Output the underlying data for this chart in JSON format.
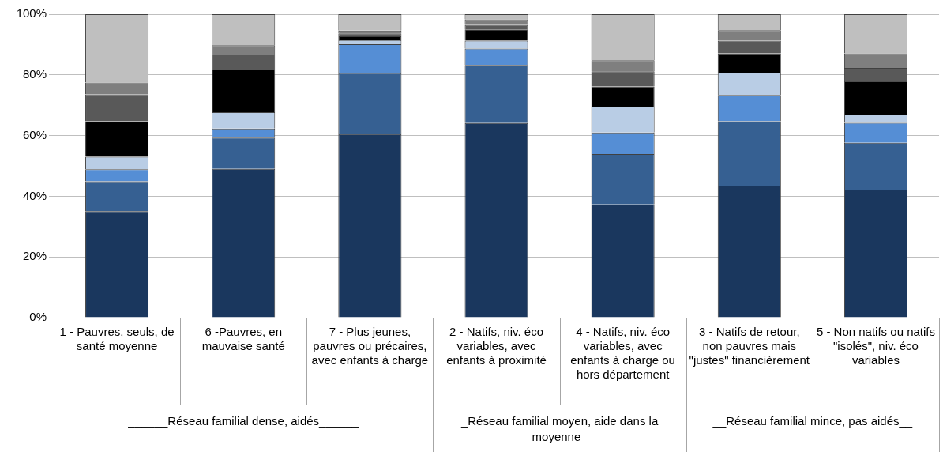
{
  "chart_data": {
    "type": "bar",
    "stacked": true,
    "categories": [
      "1 - Pauvres, seuls, de santé moyenne",
      "6 -Pauvres, en mauvaise santé",
      "7 - Plus jeunes, pauvres ou précaires, avec enfants à charge",
      "2 - Natifs, niv. éco variables, avec enfants à proximité",
      "4 - Natifs, niv. éco variables, avec enfants à charge ou hors département",
      "3 - Natifs de retour, non pauvres mais \"justes\" financièrement",
      "5 - Non natifs ou natifs \"isolés\", niv. éco variables"
    ],
    "series": [
      {
        "color": "#1a375e",
        "values": [
          35.1,
          49.0,
          60.5,
          64.1,
          37.3,
          43.5,
          42.2
        ]
      },
      {
        "color": "#366092",
        "values": [
          9.8,
          10.3,
          20.1,
          19.2,
          16.6,
          21.2,
          15.4
        ]
      },
      {
        "color": "#558ed5",
        "values": [
          4.0,
          3.0,
          9.5,
          5.4,
          7.1,
          8.7,
          6.6
        ]
      },
      {
        "color": "#b9cde5",
        "values": [
          4.1,
          5.4,
          1.4,
          2.6,
          8.5,
          7.3,
          2.7
        ]
      },
      {
        "color": "#000000",
        "values": [
          11.7,
          14.1,
          1.2,
          3.7,
          6.7,
          6.4,
          11.1
        ]
      },
      {
        "color": "#595959",
        "values": [
          8.9,
          4.9,
          1.0,
          1.5,
          5.0,
          4.2,
          4.3
        ]
      },
      {
        "color": "#7f7f7f",
        "values": [
          3.9,
          3.1,
          0.9,
          1.8,
          3.6,
          3.4,
          4.8
        ]
      },
      {
        "color": "#bfbfbf",
        "values": [
          22.5,
          10.2,
          5.4,
          1.7,
          15.2,
          5.3,
          12.9
        ]
      }
    ],
    "ylim": [
      0,
      100
    ],
    "yticks": [
      {
        "value": 0,
        "label": "0%"
      },
      {
        "value": 20,
        "label": "20%"
      },
      {
        "value": 40,
        "label": "40%"
      },
      {
        "value": 60,
        "label": "60%"
      },
      {
        "value": 80,
        "label": "80%"
      },
      {
        "value": 100,
        "label": "100%"
      }
    ],
    "grid": "y",
    "legend": false,
    "annotations": [
      "______Réseau familial dense, aidés______",
      "_Réseau familial moyen, aide dans la moyenne_",
      "__Réseau familial mince, pas aidés__"
    ]
  }
}
